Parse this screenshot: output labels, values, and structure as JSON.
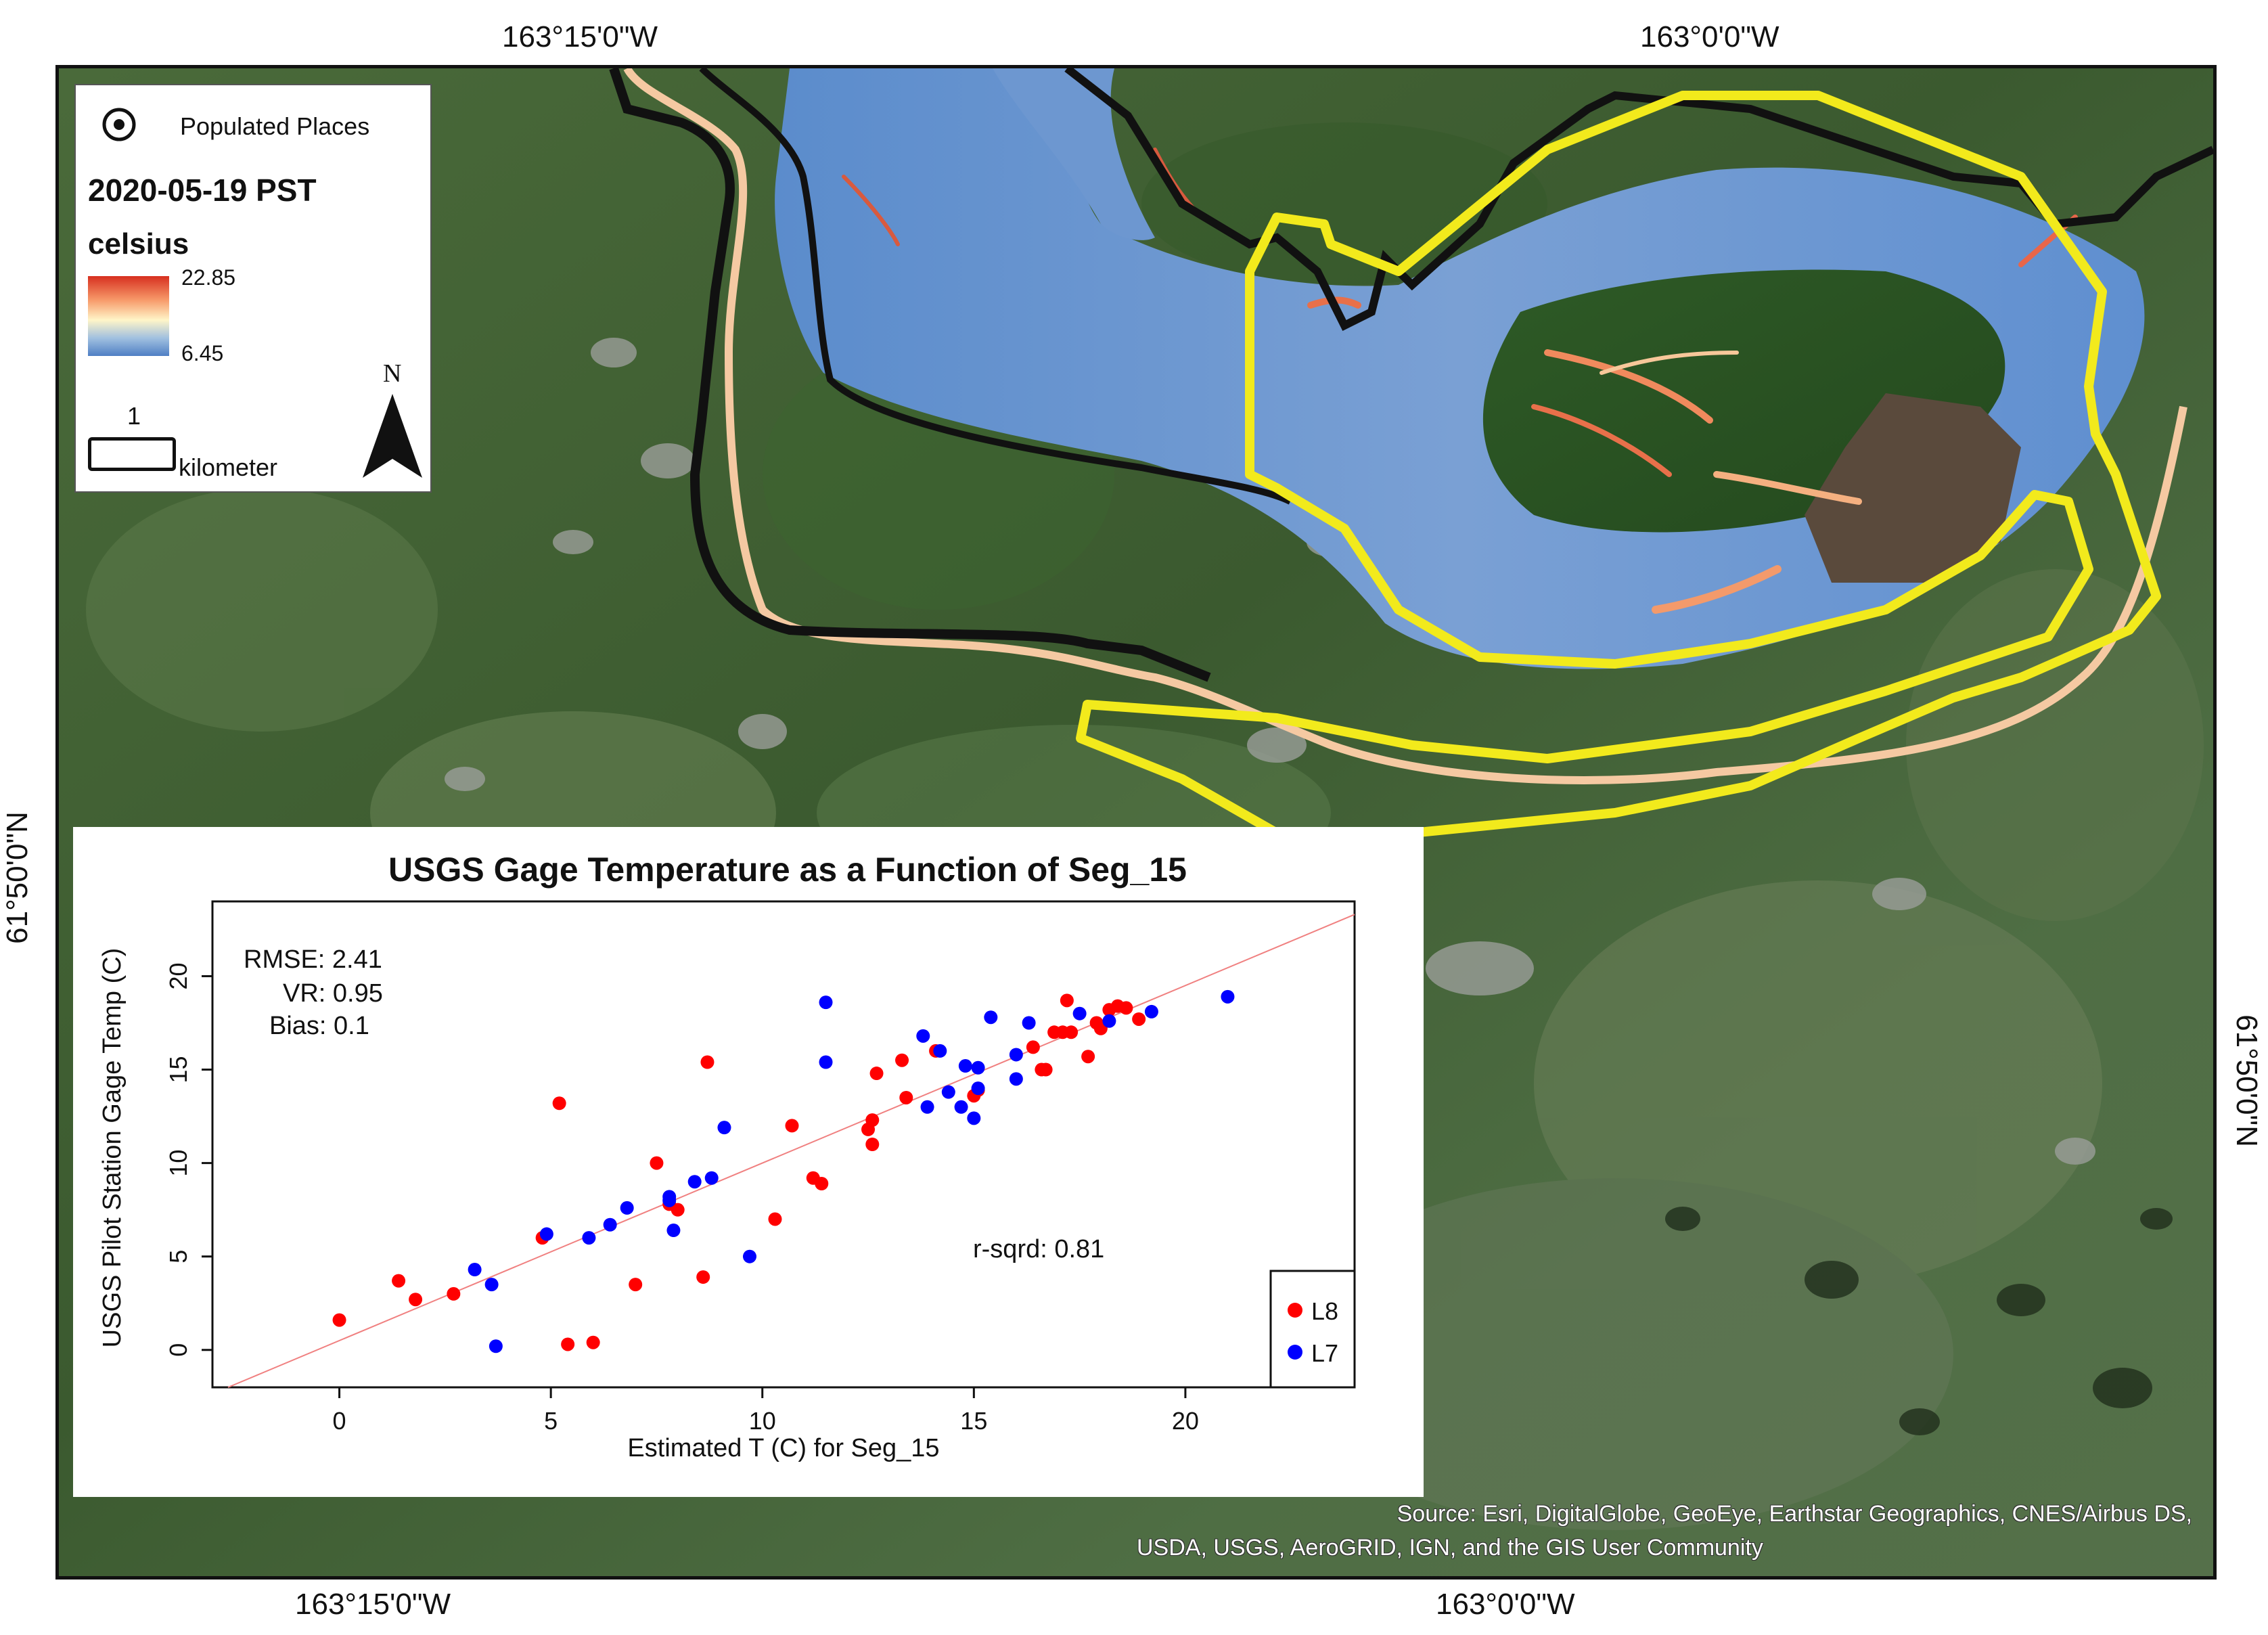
{
  "coordinates": {
    "top_left": "163°15'0\"W",
    "top_right": "163°0'0\"W",
    "bottom_left": "163°15'0\"W",
    "bottom_right": "163°0'0\"W",
    "left": "61°50'0\"N",
    "right": "61°50'0\"N"
  },
  "legend": {
    "populated_places": "Populated Places",
    "date": "2020-05-19 PST",
    "units": "celsius",
    "max": "22.85",
    "min": "6.45",
    "scale_value": "1",
    "scale_unit": "kilometer",
    "north": "N"
  },
  "colors": {
    "ramp_high": "#d7301f",
    "ramp_mid": "#fff5c8",
    "ramp_low": "#4f7fc4",
    "study_area": "#f2ea1c",
    "boundary": "#111111",
    "fit_line": "#f08080",
    "l8": "#ff0000",
    "l7": "#0000ff"
  },
  "chart_data": {
    "type": "scatter",
    "title": "USGS Gage Temperature as a Function of Seg_15",
    "xlabel": "Estimated T (C) for Seg_15",
    "ylabel": "USGS Pilot Station Gage Temp (C)",
    "xlim": [
      -3,
      24
    ],
    "ylim": [
      -2,
      24
    ],
    "xticks": [
      "0",
      "5",
      "10",
      "15",
      "20"
    ],
    "yticks": [
      "0",
      "5",
      "10",
      "15",
      "20"
    ],
    "stats": [
      "RMSE: 2.41",
      "VR: 0.95",
      "Bias: 0.1"
    ],
    "r_squared": "r-sqrd: 0.81",
    "fit_line": {
      "slope": 0.95,
      "intercept": 0.5
    },
    "legend_position": "bottom-right",
    "series": [
      {
        "name": "L8",
        "color": "#ff0000",
        "points": [
          [
            0,
            1.6
          ],
          [
            1.4,
            3.7
          ],
          [
            1.8,
            2.7
          ],
          [
            2.7,
            3.0
          ],
          [
            4.8,
            6.0
          ],
          [
            5.2,
            13.2
          ],
          [
            5.4,
            0.3
          ],
          [
            6.0,
            0.4
          ],
          [
            7.0,
            3.5
          ],
          [
            7.5,
            10.0
          ],
          [
            7.8,
            7.8
          ],
          [
            8.0,
            7.5
          ],
          [
            8.6,
            3.9
          ],
          [
            8.7,
            15.4
          ],
          [
            10.3,
            7.0
          ],
          [
            10.7,
            12.0
          ],
          [
            11.2,
            9.2
          ],
          [
            11.4,
            8.9
          ],
          [
            12.5,
            11.8
          ],
          [
            12.6,
            12.3
          ],
          [
            12.6,
            11.0
          ],
          [
            12.7,
            14.8
          ],
          [
            13.3,
            15.5
          ],
          [
            13.4,
            13.5
          ],
          [
            14.1,
            16.0
          ],
          [
            15.0,
            13.6
          ],
          [
            15.1,
            13.9
          ],
          [
            16.4,
            16.2
          ],
          [
            16.6,
            15.0
          ],
          [
            16.7,
            15.0
          ],
          [
            16.9,
            17.0
          ],
          [
            17.1,
            17.0
          ],
          [
            17.2,
            18.7
          ],
          [
            17.3,
            17.0
          ],
          [
            17.7,
            15.7
          ],
          [
            17.9,
            17.5
          ],
          [
            18.0,
            17.2
          ],
          [
            18.2,
            18.2
          ],
          [
            18.4,
            18.4
          ],
          [
            18.6,
            18.3
          ],
          [
            18.9,
            17.7
          ]
        ]
      },
      {
        "name": "L7",
        "color": "#0000ff",
        "points": [
          [
            3.2,
            4.3
          ],
          [
            3.6,
            3.5
          ],
          [
            3.7,
            0.2
          ],
          [
            4.9,
            6.2
          ],
          [
            5.9,
            6.0
          ],
          [
            6.4,
            6.7
          ],
          [
            6.8,
            7.6
          ],
          [
            7.8,
            8.2
          ],
          [
            7.8,
            8.0
          ],
          [
            7.9,
            6.4
          ],
          [
            8.4,
            9.0
          ],
          [
            8.8,
            9.2
          ],
          [
            9.1,
            11.9
          ],
          [
            9.7,
            5.0
          ],
          [
            11.5,
            18.6
          ],
          [
            11.5,
            15.4
          ],
          [
            13.8,
            16.8
          ],
          [
            13.9,
            13.0
          ],
          [
            14.2,
            16.0
          ],
          [
            14.4,
            13.8
          ],
          [
            14.7,
            13.0
          ],
          [
            14.8,
            15.2
          ],
          [
            15.0,
            12.4
          ],
          [
            15.1,
            15.1
          ],
          [
            15.1,
            14.0
          ],
          [
            15.4,
            17.8
          ],
          [
            16.0,
            14.5
          ],
          [
            16.0,
            15.8
          ],
          [
            16.3,
            17.5
          ],
          [
            17.5,
            18.0
          ],
          [
            18.2,
            17.6
          ],
          [
            19.2,
            18.1
          ],
          [
            21.0,
            18.9
          ]
        ]
      }
    ]
  },
  "attribution": {
    "line1": "Source: Esri, DigitalGlobe, GeoEye, Earthstar Geographics, CNES/Airbus DS,",
    "line2": "USDA, USGS, AeroGRID, IGN, and the GIS User Community"
  }
}
